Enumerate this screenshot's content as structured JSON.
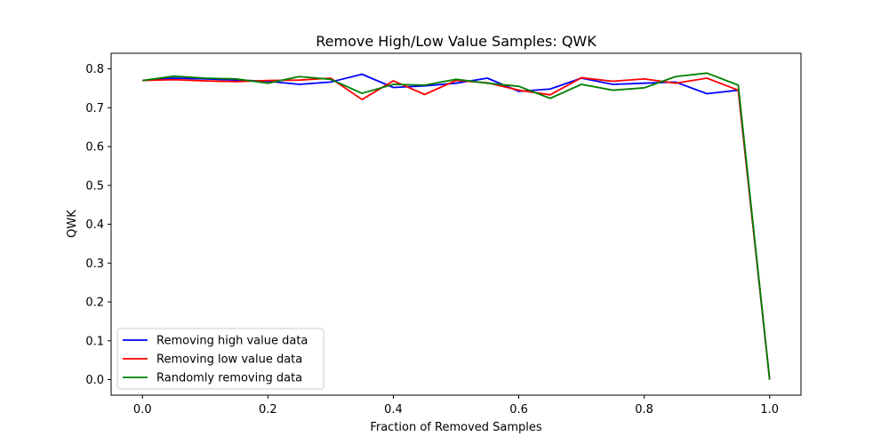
{
  "chart_data": {
    "type": "line",
    "title": "Remove High/Low Value Samples: QWK",
    "xlabel": "Fraction of Removed Samples",
    "ylabel": "QWK",
    "xlim": [
      -0.05,
      1.05
    ],
    "ylim": [
      -0.04,
      0.84
    ],
    "xticks": [
      0.0,
      0.2,
      0.4,
      0.6,
      0.8,
      1.0
    ],
    "xtick_labels": [
      "0.0",
      "0.2",
      "0.4",
      "0.6",
      "0.8",
      "1.0"
    ],
    "yticks": [
      0.0,
      0.1,
      0.2,
      0.3,
      0.4,
      0.5,
      0.6,
      0.7,
      0.8
    ],
    "ytick_labels": [
      "0.0",
      "0.1",
      "0.2",
      "0.3",
      "0.4",
      "0.5",
      "0.6",
      "0.7",
      "0.8"
    ],
    "grid": false,
    "legend_position": "lower-left",
    "x": [
      0.0,
      0.05,
      0.1,
      0.15,
      0.2,
      0.25,
      0.3,
      0.35,
      0.4,
      0.45,
      0.5,
      0.55,
      0.6,
      0.65,
      0.7,
      0.75,
      0.8,
      0.85,
      0.9,
      0.95,
      1.0
    ],
    "series": [
      {
        "name": "Removing high value data",
        "color": "#0000ff",
        "values": [
          0.77,
          0.776,
          0.774,
          0.771,
          0.768,
          0.76,
          0.766,
          0.786,
          0.752,
          0.756,
          0.763,
          0.776,
          0.742,
          0.748,
          0.776,
          0.76,
          0.763,
          0.766,
          0.736,
          0.745,
          0.0
        ]
      },
      {
        "name": "Removing low value data",
        "color": "#ff0000",
        "values": [
          0.77,
          0.772,
          0.769,
          0.767,
          0.77,
          0.771,
          0.776,
          0.721,
          0.769,
          0.734,
          0.77,
          0.764,
          0.745,
          0.733,
          0.777,
          0.768,
          0.774,
          0.763,
          0.776,
          0.745,
          0.0
        ]
      },
      {
        "name": "Randomly removing data",
        "color": "#008000",
        "values": [
          0.77,
          0.781,
          0.776,
          0.774,
          0.763,
          0.78,
          0.773,
          0.737,
          0.76,
          0.758,
          0.773,
          0.763,
          0.755,
          0.724,
          0.76,
          0.745,
          0.751,
          0.78,
          0.789,
          0.758,
          0.0
        ]
      }
    ]
  }
}
